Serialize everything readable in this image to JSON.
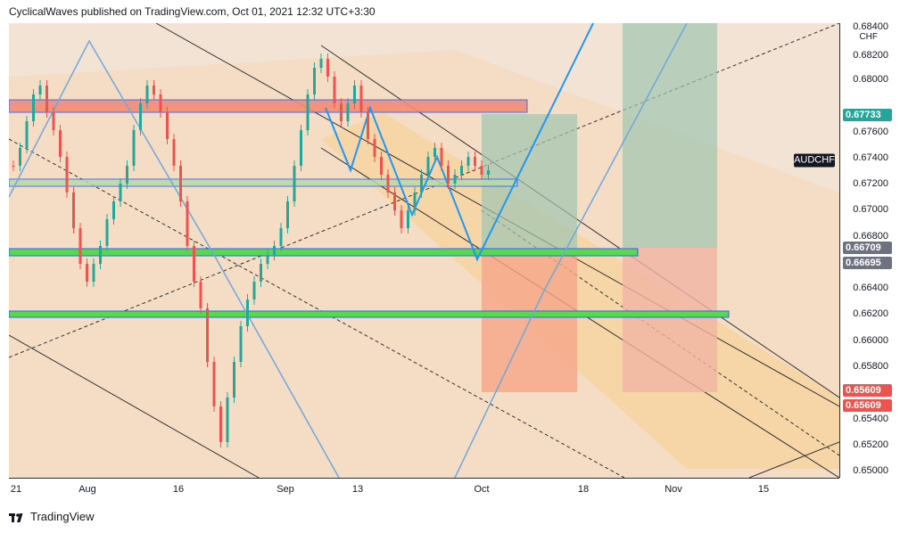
{
  "header": {
    "publisher_line": "CyclicalWaves published on TradingView.com, Oct 01, 2021 12:32 UTC+3:30"
  },
  "symbol": "AUDCHF",
  "price_axis": {
    "unit": "CHF",
    "ticks": [
      "0.68400",
      "0.68200",
      "0.68000",
      "0.67600",
      "0.67400",
      "0.67200",
      "0.67000",
      "0.66800",
      "0.66400",
      "0.66200",
      "0.66000",
      "0.65800",
      "0.65400",
      "0.65200",
      "0.65000"
    ]
  },
  "price_tags": [
    {
      "label": "0.67733",
      "color": "#26a69a"
    },
    {
      "label": "0.66709",
      "color": "#6f7280"
    },
    {
      "label": "0.66695",
      "color": "#6f7280"
    },
    {
      "label": "0.65609",
      "color": "#ef5350"
    },
    {
      "label": "0.65609",
      "color": "#ef5350"
    }
  ],
  "time_axis": {
    "ticks": [
      "21",
      "Aug",
      "16",
      "Sep",
      "13",
      "Oct",
      "18",
      "Nov",
      "15"
    ]
  },
  "footer": {
    "brand": "TradingView"
  },
  "colors": {
    "background": "#f3e3d4",
    "up_candle": "#26a69a",
    "down_candle": "#ef5350",
    "zone_green": "#56d94a",
    "zone_red": "#f28b78",
    "wave_line": "#2196f3"
  }
}
